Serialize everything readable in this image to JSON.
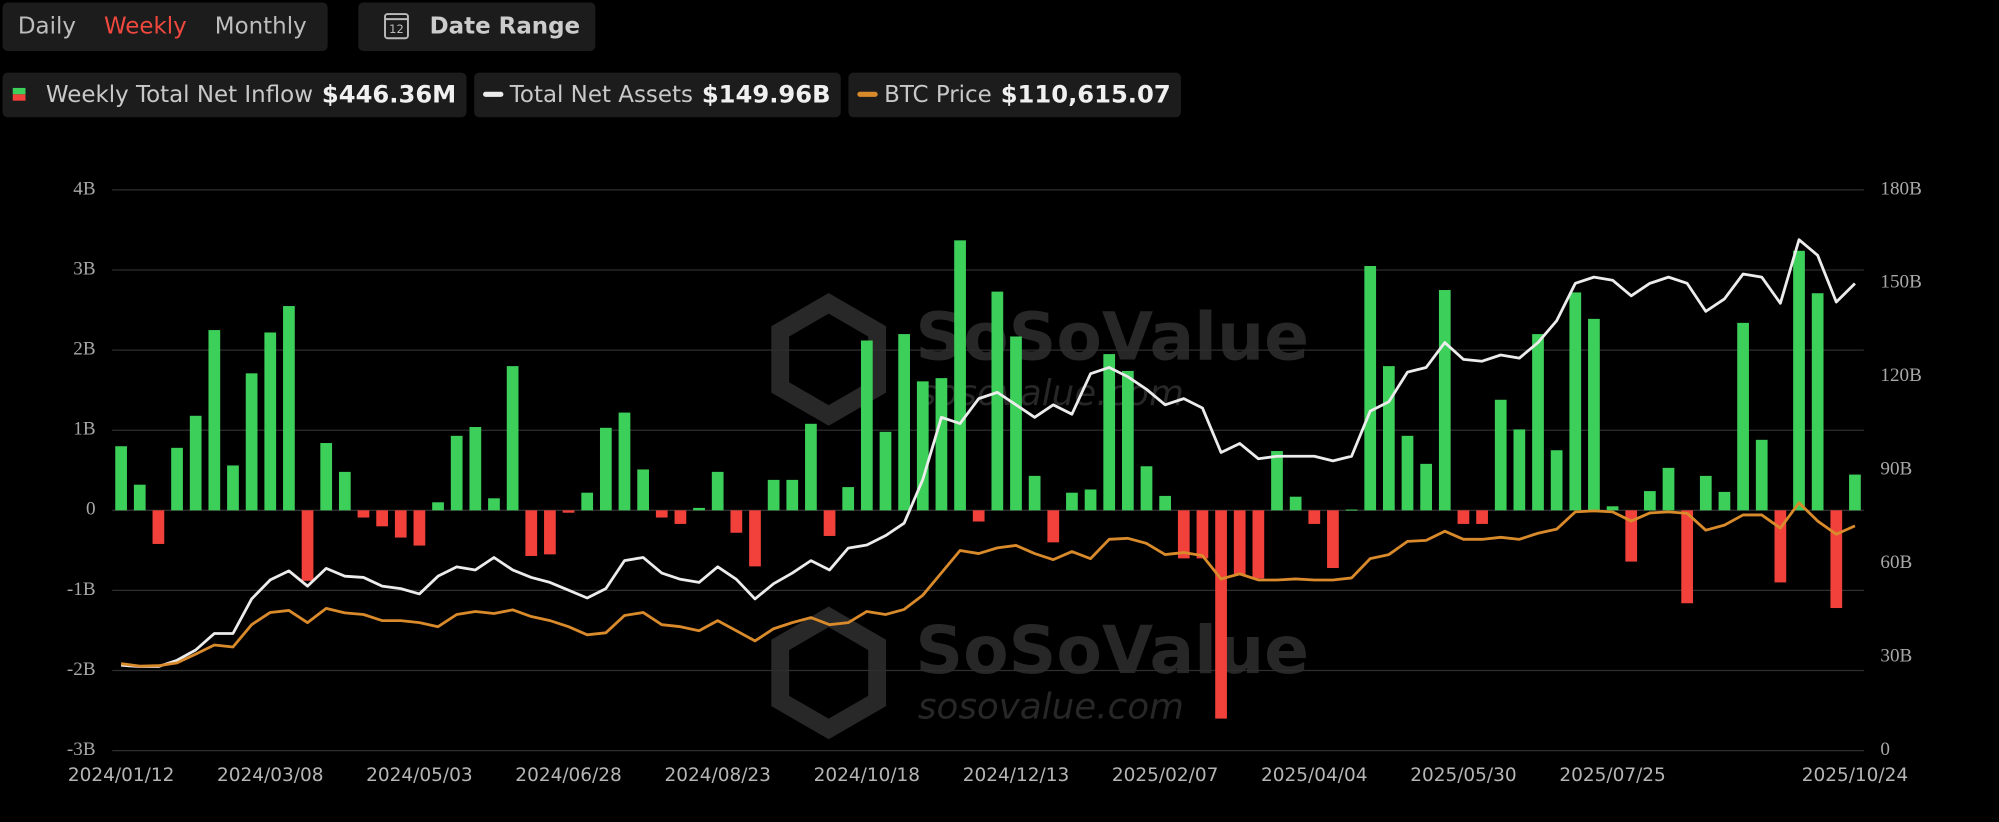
{
  "toolbar": {
    "ranges": [
      "Daily",
      "Weekly",
      "Monthly"
    ],
    "active": 1,
    "date_range": "Date Range",
    "date_icon": "12"
  },
  "watermark": {
    "title": "SoSoValue",
    "url": "sosovalue.com"
  },
  "chart_data": {
    "type": "bar",
    "categories": [
      "2024/01/12",
      null,
      null,
      null,
      null,
      null,
      null,
      null,
      "2024/03/08",
      null,
      null,
      null,
      null,
      null,
      null,
      null,
      "2024/05/03",
      null,
      null,
      null,
      null,
      null,
      null,
      null,
      "2024/06/28",
      null,
      null,
      null,
      null,
      null,
      null,
      null,
      "2024/08/23",
      null,
      null,
      null,
      null,
      null,
      null,
      null,
      "2024/10/18",
      null,
      null,
      null,
      null,
      null,
      null,
      null,
      "2024/12/13",
      null,
      null,
      null,
      null,
      null,
      null,
      null,
      "2025/02/07",
      null,
      null,
      null,
      null,
      null,
      null,
      null,
      "2025/04/04",
      null,
      null,
      null,
      null,
      null,
      null,
      null,
      "2025/05/30",
      null,
      null,
      null,
      null,
      null,
      null,
      null,
      "2025/07/25",
      null,
      null,
      null,
      null,
      null,
      null,
      null,
      null,
      null,
      null,
      null,
      null,
      "2025/10/24"
    ],
    "ylim": [
      -3,
      4
    ],
    "yticks": [
      {
        "value": 4,
        "label": "4B"
      },
      {
        "value": 3,
        "label": "3B"
      },
      {
        "value": 2,
        "label": "2B"
      },
      {
        "value": 1,
        "label": "1B"
      },
      0,
      {
        "value": -1,
        "label": "-1B"
      },
      {
        "value": -2,
        "label": "-2B"
      },
      {
        "value": -3,
        "label": "-3B"
      }
    ],
    "y2lim": [
      0,
      180
    ],
    "y2ticks": [
      {
        "value": 180,
        "label": "180B"
      },
      {
        "value": 150,
        "label": "150B"
      },
      {
        "value": 120,
        "label": "120B"
      },
      {
        "value": 90,
        "label": "90B"
      },
      {
        "value": 60,
        "label": "60B"
      },
      {
        "value": 30,
        "label": "30B"
      },
      0
    ],
    "y3lim": [
      0,
      276000
    ],
    "grid": true,
    "series": [
      {
        "name": "Weekly Total Net Inflow",
        "legend_value": "$446.36M",
        "type": "bar",
        "color": "#3ccf5a",
        "negative_color": "#f2413b",
        "values": [
          0.8,
          0.32,
          -0.42,
          0.78,
          1.18,
          2.25,
          0.56,
          1.71,
          2.22,
          2.55,
          -0.88,
          0.84,
          0.48,
          -0.09,
          -0.2,
          -0.34,
          -0.44,
          0.1,
          0.93,
          1.04,
          0.15,
          1.8,
          -0.57,
          -0.55,
          -0.03,
          0.22,
          1.03,
          1.22,
          0.51,
          -0.09,
          -0.17,
          0.03,
          0.48,
          -0.28,
          -0.7,
          0.38,
          0.38,
          1.08,
          -0.32,
          0.29,
          2.12,
          0.98,
          2.2,
          1.61,
          1.65,
          3.37,
          -0.14,
          2.73,
          2.17,
          0.43,
          -0.4,
          0.22,
          0.26,
          1.95,
          1.74,
          0.55,
          0.18,
          -0.6,
          -0.6,
          -2.6,
          -0.8,
          -0.85,
          0.74,
          0.17,
          -0.17,
          -0.72,
          0.01,
          3.05,
          1.8,
          0.93,
          0.58,
          2.75,
          -0.17,
          -0.17,
          1.38,
          1.01,
          2.2,
          0.75,
          2.72,
          2.39,
          0.05,
          -0.64,
          0.24,
          0.53,
          -1.16,
          0.43,
          0.23,
          2.34,
          0.88,
          -0.9,
          3.24,
          2.71,
          -1.22,
          0.44636
        ]
      },
      {
        "name": "Total Net Assets",
        "legend_value": "$149.96B",
        "type": "line",
        "axis": "y2",
        "color": "#ececec",
        "values": [
          27.4,
          27,
          27,
          29,
          32.3,
          37.6,
          37.6,
          48.7,
          54.8,
          57.7,
          52.8,
          58.5,
          56,
          55.6,
          52.8,
          52,
          50.3,
          56,
          59,
          58,
          62,
          58,
          55.6,
          54,
          51.5,
          49,
          52,
          61,
          62,
          57,
          55,
          54,
          59,
          55,
          48.7,
          53.6,
          57,
          61,
          58,
          65,
          66,
          69,
          73,
          87,
          107,
          105,
          113,
          115,
          111,
          107,
          111,
          108,
          121,
          123,
          120,
          116,
          111,
          113,
          110,
          95.7,
          98.6,
          93.7,
          94.5,
          94.5,
          94.5,
          93,
          94.5,
          109,
          112,
          121.5,
          123,
          131,
          125.6,
          125,
          127,
          126,
          131,
          138,
          150,
          152,
          151,
          146,
          150,
          152,
          150,
          141,
          145,
          153,
          152,
          143.6,
          164,
          159,
          144,
          149.96
        ]
      },
      {
        "name": "BTC Price",
        "legend_value": "$110,615.07",
        "type": "line",
        "axis": "y3",
        "color": "#d98a2b",
        "values": [
          42800,
          41600,
          41800,
          43200,
          47500,
          52000,
          51000,
          62000,
          68000,
          69000,
          63000,
          70000,
          67800,
          67000,
          64000,
          64000,
          63000,
          61000,
          67000,
          68500,
          67500,
          69300,
          66000,
          64000,
          61000,
          57000,
          58000,
          66500,
          68000,
          62000,
          61000,
          59000,
          64000,
          59000,
          54000,
          60000,
          63000,
          65500,
          62000,
          63000,
          68500,
          67000,
          69500,
          76500,
          87500,
          98500,
          97000,
          99800,
          101000,
          97000,
          94000,
          98000,
          94500,
          104000,
          104500,
          102000,
          96500,
          97500,
          96000,
          84500,
          87000,
          84000,
          84000,
          84500,
          84000,
          84000,
          85000,
          94500,
          96500,
          103000,
          103500,
          108000,
          104000,
          104000,
          105000,
          104000,
          107000,
          109000,
          117500,
          118000,
          117500,
          113000,
          117000,
          117500,
          116800,
          108500,
          111000,
          116000,
          116000,
          109500,
          122000,
          113000,
          106500,
          110615.07
        ]
      }
    ]
  }
}
